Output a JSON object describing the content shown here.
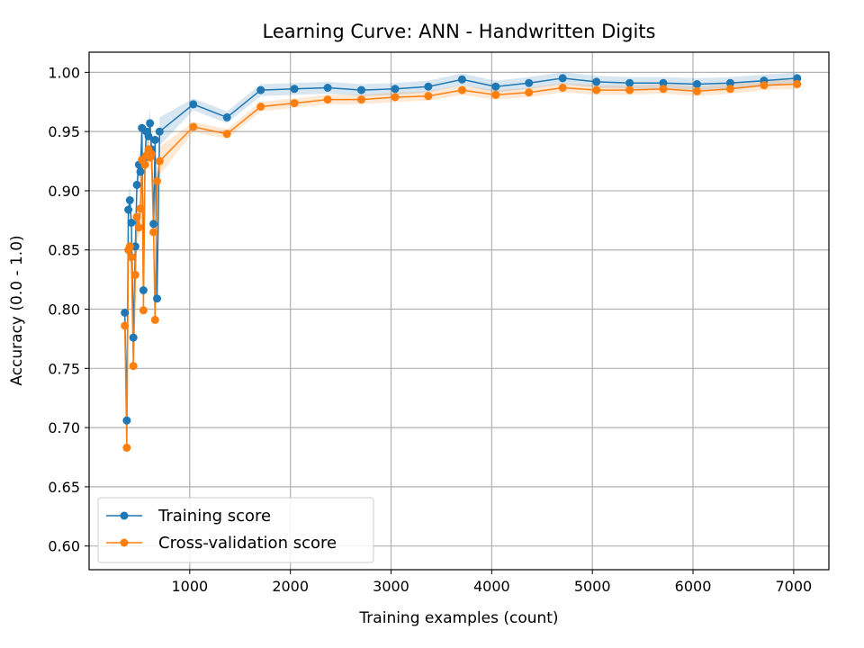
{
  "chart_data": {
    "type": "line",
    "title": "Learning Curve: ANN - Handwritten Digits",
    "xlabel": "Training examples (count)",
    "ylabel": "Accuracy (0.0 - 1.0)",
    "xlim": [
      0,
      7350
    ],
    "ylim": [
      0.58,
      1.017
    ],
    "xticks": [
      1000,
      2000,
      3000,
      4000,
      5000,
      6000,
      7000
    ],
    "yticks": [
      0.6,
      0.65,
      0.7,
      0.75,
      0.8,
      0.85,
      0.9,
      0.95,
      1.0
    ],
    "grid": true,
    "legend_position": "lower-left",
    "colors": {
      "training": "#1f77b4",
      "cv": "#ff7f0e"
    },
    "series": [
      {
        "name": "Training score",
        "x": [
          355,
          375,
          390,
          405,
          420,
          440,
          460,
          475,
          495,
          510,
          525,
          540,
          555,
          570,
          590,
          605,
          620,
          640,
          655,
          675,
          700,
          1035,
          1370,
          1705,
          2040,
          2370,
          2705,
          3040,
          3370,
          3705,
          4040,
          4370,
          4705,
          5040,
          5370,
          5705,
          6040,
          6370,
          6705,
          7035
        ],
        "values": [
          0.797,
          0.706,
          0.884,
          0.892,
          0.873,
          0.776,
          0.853,
          0.905,
          0.922,
          0.916,
          0.953,
          0.816,
          0.928,
          0.95,
          0.946,
          0.957,
          0.935,
          0.872,
          0.943,
          0.809,
          0.95,
          0.973,
          0.962,
          0.985,
          0.986,
          0.987,
          0.985,
          0.986,
          0.988,
          0.994,
          0.988,
          0.991,
          0.995,
          0.992,
          0.991,
          0.991,
          0.99,
          0.991,
          0.993,
          0.995
        ]
      },
      {
        "name": "Cross-validation score",
        "x": [
          355,
          375,
          390,
          405,
          420,
          440,
          460,
          475,
          495,
          510,
          525,
          540,
          555,
          570,
          590,
          605,
          620,
          640,
          655,
          675,
          700,
          1035,
          1370,
          1705,
          2040,
          2370,
          2705,
          3040,
          3370,
          3705,
          4040,
          4370,
          4705,
          5040,
          5370,
          5705,
          6040,
          6370,
          6705,
          7035
        ],
        "values": [
          0.786,
          0.683,
          0.85,
          0.853,
          0.844,
          0.752,
          0.829,
          0.878,
          0.869,
          0.885,
          0.926,
          0.799,
          0.922,
          0.93,
          0.935,
          0.928,
          0.931,
          0.865,
          0.791,
          0.908,
          0.925,
          0.954,
          0.948,
          0.971,
          0.974,
          0.977,
          0.977,
          0.979,
          0.98,
          0.985,
          0.981,
          0.983,
          0.987,
          0.985,
          0.985,
          0.986,
          0.984,
          0.986,
          0.989,
          0.99
        ]
      }
    ]
  }
}
